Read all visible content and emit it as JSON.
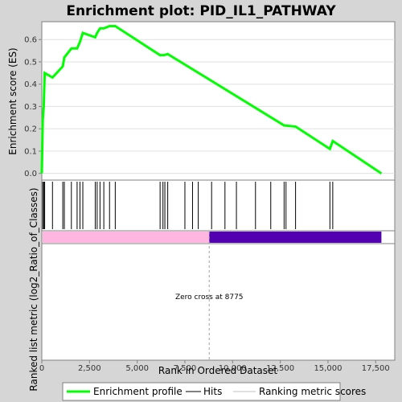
{
  "chart_data": {
    "type": "line",
    "title": "Enrichment plot: PID_IL1_PATHWAY",
    "ylabel_top": "Enrichment score (ES)",
    "ylabel_bottom": "Ranked list metric (log2_Ratio_of_Classes)",
    "xlabel": "Rank in Ordered Dataset",
    "xlim": [
      0,
      18500
    ],
    "ylim": [
      -0.03,
      0.68
    ],
    "x_ticks": [
      0,
      2500,
      5000,
      7500,
      10000,
      12500,
      15000,
      17500
    ],
    "x_tick_labels": [
      "0",
      "2,500",
      "5,000",
      "7,500",
      "10,000",
      "12,500",
      "15,000",
      "17,500"
    ],
    "y_ticks": [
      0.0,
      0.1,
      0.2,
      0.3,
      0.4,
      0.5,
      0.6
    ],
    "y_tick_labels": [
      "0.0",
      "0.1",
      "0.2",
      "0.3",
      "0.4",
      "0.5",
      "0.6"
    ],
    "series": [
      {
        "name": "Enrichment profile",
        "color": "#00ff00",
        "x": [
          0,
          50,
          50,
          100,
          100,
          150,
          150,
          560,
          560,
          1100,
          1100,
          1180,
          1180,
          1550,
          1550,
          1850,
          1850,
          2000,
          2000,
          2150,
          2150,
          2800,
          2800,
          2900,
          2900,
          3050,
          3050,
          3250,
          3250,
          3550,
          3550,
          3850,
          3850,
          6200,
          6200,
          6400,
          6400,
          6600,
          6600,
          12700,
          12700,
          13300,
          13300,
          15100,
          15100,
          15250,
          15250,
          17800
        ],
        "y": [
          0.0,
          0.24,
          0.24,
          0.3,
          0.3,
          0.45,
          0.45,
          0.43,
          0.43,
          0.48,
          0.48,
          0.52,
          0.52,
          0.56,
          0.56,
          0.56,
          0.56,
          0.59,
          0.59,
          0.63,
          0.63,
          0.61,
          0.61,
          0.63,
          0.63,
          0.65,
          0.65,
          0.65,
          0.65,
          0.66,
          0.66,
          0.66,
          0.66,
          0.53,
          0.53,
          0.53,
          0.53,
          0.535,
          0.535,
          0.215,
          0.215,
          0.21,
          0.21,
          0.11,
          0.11,
          0.145,
          0.145,
          0.0
        ]
      }
    ],
    "hits": [
      50,
      100,
      150,
      560,
      1100,
      1180,
      1550,
      1850,
      2000,
      2150,
      2800,
      2900,
      3050,
      3250,
      3550,
      3850,
      6200,
      6350,
      6450,
      6600,
      7500,
      7900,
      8200,
      8900,
      9600,
      10200,
      11200,
      12000,
      12700,
      12800,
      13300,
      15100,
      15250
    ],
    "ranking_metric": {
      "positive_color": "#ffb6e0",
      "negative_color": "#5200b0",
      "zero_cross": 8775,
      "end": 17800
    },
    "annotation": "Zero cross at 8775",
    "legend": {
      "placement": "bottom",
      "items": [
        {
          "label": "Enrichment profile",
          "color": "#00ff00",
          "kind": "thick-line"
        },
        {
          "label": "Hits",
          "color": "#000000",
          "kind": "line"
        },
        {
          "label": "Ranking metric scores",
          "color": "#c0c0c0",
          "kind": "line"
        }
      ]
    }
  }
}
